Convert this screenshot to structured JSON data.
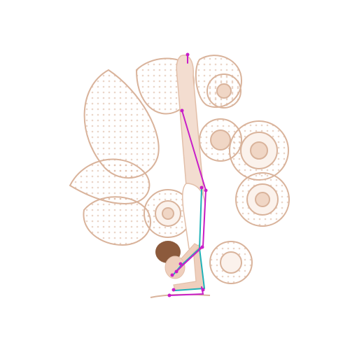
{
  "palette": {
    "background": "#ffffff",
    "mandala_line": "#d9b39b",
    "mandala_fill": "#f4e3d8",
    "skin": "#efcfbd",
    "hair": "#8c5a3c",
    "pose_magenta": "#c81ec8",
    "pose_cyan": "#1fb2b8"
  },
  "icons": {
    "artwork": "yoga-handstand-illustration-icon",
    "pose_overlay": "pose-skeleton-icon"
  }
}
